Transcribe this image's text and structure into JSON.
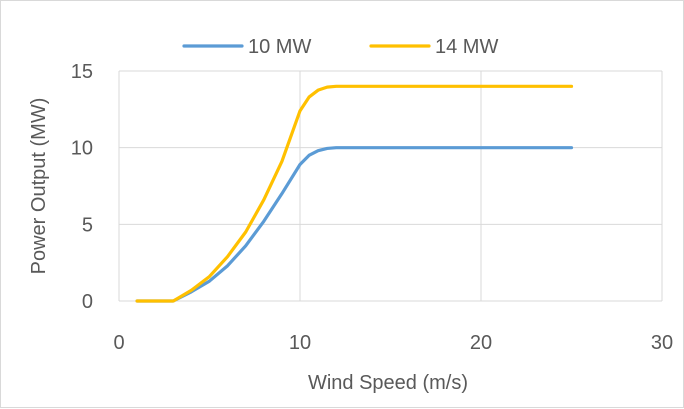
{
  "chart_data": {
    "type": "line",
    "title": "",
    "xlabel": "Wind Speed (m/s)",
    "ylabel": "Power Output (MW)",
    "xlim": [
      0,
      30
    ],
    "ylim": [
      0,
      15
    ],
    "x_ticks": [
      0,
      10,
      20,
      30
    ],
    "y_ticks": [
      0,
      5,
      10,
      15
    ],
    "grid": true,
    "legend_position": "top",
    "series": [
      {
        "name": "10 MW",
        "color": "#5B9BD5",
        "x": [
          1,
          2,
          3,
          4,
          5,
          6,
          7,
          8,
          9,
          10,
          10.5,
          11,
          11.5,
          12,
          12.5,
          13,
          15,
          20,
          25
        ],
        "y": [
          0,
          0,
          0,
          0.6,
          1.3,
          2.3,
          3.6,
          5.2,
          7.0,
          8.9,
          9.5,
          9.8,
          9.95,
          10,
          10,
          10,
          10,
          10,
          10
        ]
      },
      {
        "name": "14 MW",
        "color": "#FFC000",
        "x": [
          1,
          2,
          3,
          4,
          5,
          6,
          7,
          8,
          9,
          10,
          10.5,
          11,
          11.5,
          12,
          12.5,
          13,
          15,
          20,
          25
        ],
        "y": [
          0,
          0,
          0,
          0.7,
          1.6,
          2.9,
          4.5,
          6.6,
          9.1,
          12.4,
          13.3,
          13.75,
          13.95,
          14.0,
          14.0,
          14.0,
          14.0,
          14.0,
          14.0
        ]
      }
    ]
  }
}
